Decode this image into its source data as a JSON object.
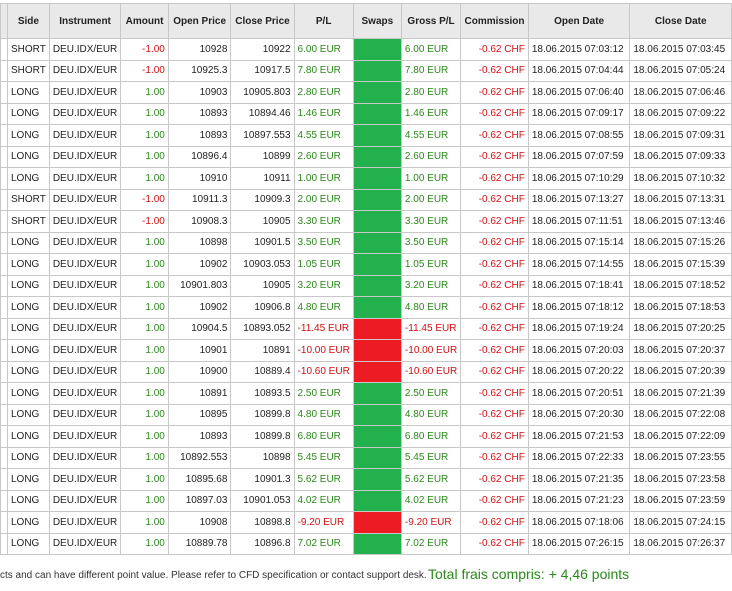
{
  "columns": [
    "Side",
    "Instrument",
    "Amount",
    "Open Price",
    "Close Price",
    "P/L",
    "Swaps",
    "Gross P/L",
    "Commission",
    "Open Date",
    "Close Date"
  ],
  "colors": {
    "positive": "#2a8a1a",
    "negative": "#d01010",
    "swap_positive": "#22b14c",
    "swap_negative": "#ed1c24"
  },
  "rows": [
    {
      "side": "SHORT",
      "instrument": "DEU.IDX/EUR",
      "amount": "-1.00",
      "open_price": "10928",
      "close_price": "10922",
      "pl": "6.00 EUR",
      "gross_pl": "6.00 EUR",
      "commission": "-0.62 CHF",
      "open_date": "18.06.2015 07:03:12",
      "close_date": "18.06.2015 07:03:45"
    },
    {
      "side": "SHORT",
      "instrument": "DEU.IDX/EUR",
      "amount": "-1.00",
      "open_price": "10925.3",
      "close_price": "10917.5",
      "pl": "7.80 EUR",
      "gross_pl": "7.80 EUR",
      "commission": "-0.62 CHF",
      "open_date": "18.06.2015 07:04:44",
      "close_date": "18.06.2015 07:05:24"
    },
    {
      "side": "LONG",
      "instrument": "DEU.IDX/EUR",
      "amount": "1.00",
      "open_price": "10903",
      "close_price": "10905.803",
      "pl": "2.80 EUR",
      "gross_pl": "2.80 EUR",
      "commission": "-0.62 CHF",
      "open_date": "18.06.2015 07:06:40",
      "close_date": "18.06.2015 07:06:46"
    },
    {
      "side": "LONG",
      "instrument": "DEU.IDX/EUR",
      "amount": "1.00",
      "open_price": "10893",
      "close_price": "10894.46",
      "pl": "1.46 EUR",
      "gross_pl": "1.46 EUR",
      "commission": "-0.62 CHF",
      "open_date": "18.06.2015 07:09:17",
      "close_date": "18.06.2015 07:09:22"
    },
    {
      "side": "LONG",
      "instrument": "DEU.IDX/EUR",
      "amount": "1.00",
      "open_price": "10893",
      "close_price": "10897.553",
      "pl": "4.55 EUR",
      "gross_pl": "4.55 EUR",
      "commission": "-0.62 CHF",
      "open_date": "18.06.2015 07:08:55",
      "close_date": "18.06.2015 07:09:31"
    },
    {
      "side": "LONG",
      "instrument": "DEU.IDX/EUR",
      "amount": "1.00",
      "open_price": "10896.4",
      "close_price": "10899",
      "pl": "2.60 EUR",
      "gross_pl": "2.60 EUR",
      "commission": "-0.62 CHF",
      "open_date": "18.06.2015 07:07:59",
      "close_date": "18.06.2015 07:09:33"
    },
    {
      "side": "LONG",
      "instrument": "DEU.IDX/EUR",
      "amount": "1.00",
      "open_price": "10910",
      "close_price": "10911",
      "pl": "1.00 EUR",
      "gross_pl": "1.00 EUR",
      "commission": "-0.62 CHF",
      "open_date": "18.06.2015 07:10:29",
      "close_date": "18.06.2015 07:10:32"
    },
    {
      "side": "SHORT",
      "instrument": "DEU.IDX/EUR",
      "amount": "-1.00",
      "open_price": "10911.3",
      "close_price": "10909.3",
      "pl": "2.00 EUR",
      "gross_pl": "2.00 EUR",
      "commission": "-0.62 CHF",
      "open_date": "18.06.2015 07:13:27",
      "close_date": "18.06.2015 07:13:31"
    },
    {
      "side": "SHORT",
      "instrument": "DEU.IDX/EUR",
      "amount": "-1.00",
      "open_price": "10908.3",
      "close_price": "10905",
      "pl": "3.30 EUR",
      "gross_pl": "3.30 EUR",
      "commission": "-0.62 CHF",
      "open_date": "18.06.2015 07:11:51",
      "close_date": "18.06.2015 07:13:46"
    },
    {
      "side": "LONG",
      "instrument": "DEU.IDX/EUR",
      "amount": "1.00",
      "open_price": "10898",
      "close_price": "10901.5",
      "pl": "3.50 EUR",
      "gross_pl": "3.50 EUR",
      "commission": "-0.62 CHF",
      "open_date": "18.06.2015 07:15:14",
      "close_date": "18.06.2015 07:15:26"
    },
    {
      "side": "LONG",
      "instrument": "DEU.IDX/EUR",
      "amount": "1.00",
      "open_price": "10902",
      "close_price": "10903.053",
      "pl": "1.05 EUR",
      "gross_pl": "1.05 EUR",
      "commission": "-0.62 CHF",
      "open_date": "18.06.2015 07:14:55",
      "close_date": "18.06.2015 07:15:39"
    },
    {
      "side": "LONG",
      "instrument": "DEU.IDX/EUR",
      "amount": "1.00",
      "open_price": "10901.803",
      "close_price": "10905",
      "pl": "3.20 EUR",
      "gross_pl": "3.20 EUR",
      "commission": "-0.62 CHF",
      "open_date": "18.06.2015 07:18:41",
      "close_date": "18.06.2015 07:18:52"
    },
    {
      "side": "LONG",
      "instrument": "DEU.IDX/EUR",
      "amount": "1.00",
      "open_price": "10902",
      "close_price": "10906.8",
      "pl": "4.80 EUR",
      "gross_pl": "4.80 EUR",
      "commission": "-0.62 CHF",
      "open_date": "18.06.2015 07:18:12",
      "close_date": "18.06.2015 07:18:53"
    },
    {
      "side": "LONG",
      "instrument": "DEU.IDX/EUR",
      "amount": "1.00",
      "open_price": "10904.5",
      "close_price": "10893.052",
      "pl": "-11.45 EUR",
      "gross_pl": "-11.45 EUR",
      "commission": "-0.62 CHF",
      "open_date": "18.06.2015 07:19:24",
      "close_date": "18.06.2015 07:20:25"
    },
    {
      "side": "LONG",
      "instrument": "DEU.IDX/EUR",
      "amount": "1.00",
      "open_price": "10901",
      "close_price": "10891",
      "pl": "-10.00 EUR",
      "gross_pl": "-10.00 EUR",
      "commission": "-0.62 CHF",
      "open_date": "18.06.2015 07:20:03",
      "close_date": "18.06.2015 07:20:37"
    },
    {
      "side": "LONG",
      "instrument": "DEU.IDX/EUR",
      "amount": "1.00",
      "open_price": "10900",
      "close_price": "10889.4",
      "pl": "-10.60 EUR",
      "gross_pl": "-10.60 EUR",
      "commission": "-0.62 CHF",
      "open_date": "18.06.2015 07:20:22",
      "close_date": "18.06.2015 07:20:39"
    },
    {
      "side": "LONG",
      "instrument": "DEU.IDX/EUR",
      "amount": "1.00",
      "open_price": "10891",
      "close_price": "10893.5",
      "pl": "2.50 EUR",
      "gross_pl": "2.50 EUR",
      "commission": "-0.62 CHF",
      "open_date": "18.06.2015 07:20:51",
      "close_date": "18.06.2015 07:21:39"
    },
    {
      "side": "LONG",
      "instrument": "DEU.IDX/EUR",
      "amount": "1.00",
      "open_price": "10895",
      "close_price": "10899.8",
      "pl": "4.80 EUR",
      "gross_pl": "4.80 EUR",
      "commission": "-0.62 CHF",
      "open_date": "18.06.2015 07:20:30",
      "close_date": "18.06.2015 07:22:08"
    },
    {
      "side": "LONG",
      "instrument": "DEU.IDX/EUR",
      "amount": "1.00",
      "open_price": "10893",
      "close_price": "10899.8",
      "pl": "6.80 EUR",
      "gross_pl": "6.80 EUR",
      "commission": "-0.62 CHF",
      "open_date": "18.06.2015 07:21:53",
      "close_date": "18.06.2015 07:22:09"
    },
    {
      "side": "LONG",
      "instrument": "DEU.IDX/EUR",
      "amount": "1.00",
      "open_price": "10892.553",
      "close_price": "10898",
      "pl": "5.45 EUR",
      "gross_pl": "5.45 EUR",
      "commission": "-0.62 CHF",
      "open_date": "18.06.2015 07:22:33",
      "close_date": "18.06.2015 07:23:55"
    },
    {
      "side": "LONG",
      "instrument": "DEU.IDX/EUR",
      "amount": "1.00",
      "open_price": "10895.68",
      "close_price": "10901.3",
      "pl": "5.62 EUR",
      "gross_pl": "5.62 EUR",
      "commission": "-0.62 CHF",
      "open_date": "18.06.2015 07:21:35",
      "close_date": "18.06.2015 07:23:58"
    },
    {
      "side": "LONG",
      "instrument": "DEU.IDX/EUR",
      "amount": "1.00",
      "open_price": "10897.03",
      "close_price": "10901.053",
      "pl": "4.02 EUR",
      "gross_pl": "4.02 EUR",
      "commission": "-0.62 CHF",
      "open_date": "18.06.2015 07:21:23",
      "close_date": "18.06.2015 07:23:59"
    },
    {
      "side": "LONG",
      "instrument": "DEU.IDX/EUR",
      "amount": "1.00",
      "open_price": "10908",
      "close_price": "10898.8",
      "pl": "-9.20 EUR",
      "gross_pl": "-9.20 EUR",
      "commission": "-0.62 CHF",
      "open_date": "18.06.2015 07:18:06",
      "close_date": "18.06.2015 07:24:15"
    },
    {
      "side": "LONG",
      "instrument": "DEU.IDX/EUR",
      "amount": "1.00",
      "open_price": "10889.78",
      "close_price": "10896.8",
      "pl": "7.02 EUR",
      "gross_pl": "7.02 EUR",
      "commission": "-0.62 CHF",
      "open_date": "18.06.2015 07:26:15",
      "close_date": "18.06.2015 07:26:37"
    }
  ],
  "footer": {
    "note": "cts and can have different point value. Please refer to CFD specification or contact support desk.",
    "total": "Total frais compris: + 4,46 points"
  }
}
